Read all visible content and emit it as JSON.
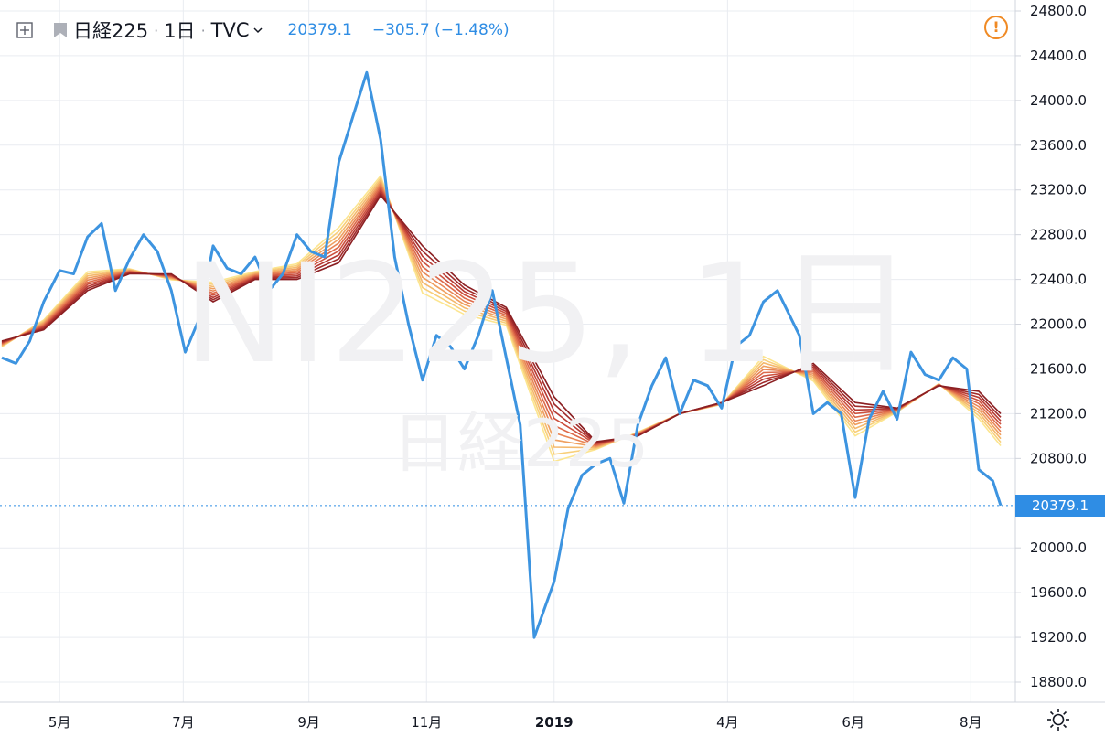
{
  "header": {
    "symbol": "日経225",
    "separator": "·",
    "timeframe": "1日",
    "exchange": "TVC",
    "last_price": "20379.1",
    "change": "−305.7 (−1.48%)",
    "price_color": "#2f8de4"
  },
  "watermark": {
    "main": "NI225, 1日",
    "sub": "日経225"
  },
  "alert_icon": "!",
  "current_price_label": "20379.1",
  "chart_data": {
    "type": "line",
    "title": "",
    "xlabel": "",
    "ylabel": "",
    "x_tick_labels": [
      "5月",
      "7月",
      "9月",
      "11月",
      "2019",
      "4月",
      "6月",
      "8月"
    ],
    "y_tick_labels": [
      "24800.0",
      "24400.0",
      "24000.0",
      "23600.0",
      "23200.0",
      "22800.0",
      "22400.0",
      "22000.0",
      "21600.0",
      "21200.0",
      "20800.0",
      "20000.0",
      "19600.0",
      "19200.0",
      "18800.0"
    ],
    "ylim": [
      18700,
      24900
    ],
    "x_range": [
      "2018-04-02",
      "2019-08-16"
    ],
    "grid": true,
    "current_price": 20379.1,
    "series": [
      {
        "color": "#3d94e0",
        "points": [
          [
            "2018-04-02",
            21700
          ],
          [
            "2018-04-09",
            21650
          ],
          [
            "2018-04-16",
            21850
          ],
          [
            "2018-04-23",
            22200
          ],
          [
            "2018-05-01",
            22480
          ],
          [
            "2018-05-08",
            22450
          ],
          [
            "2018-05-15",
            22780
          ],
          [
            "2018-05-22",
            22900
          ],
          [
            "2018-05-29",
            22300
          ],
          [
            "2018-06-05",
            22580
          ],
          [
            "2018-06-12",
            22800
          ],
          [
            "2018-06-19",
            22650
          ],
          [
            "2018-06-26",
            22300
          ],
          [
            "2018-07-03",
            21750
          ],
          [
            "2018-07-10",
            22050
          ],
          [
            "2018-07-17",
            22700
          ],
          [
            "2018-07-24",
            22500
          ],
          [
            "2018-07-31",
            22450
          ],
          [
            "2018-08-07",
            22600
          ],
          [
            "2018-08-14",
            22300
          ],
          [
            "2018-08-21",
            22450
          ],
          [
            "2018-08-28",
            22800
          ],
          [
            "2018-09-04",
            22650
          ],
          [
            "2018-09-11",
            22600
          ],
          [
            "2018-09-18",
            23450
          ],
          [
            "2018-09-25",
            23850
          ],
          [
            "2018-10-02",
            24250
          ],
          [
            "2018-10-09",
            23650
          ],
          [
            "2018-10-16",
            22600
          ],
          [
            "2018-10-23",
            22000
          ],
          [
            "2018-10-30",
            21500
          ],
          [
            "2018-11-06",
            21900
          ],
          [
            "2018-11-13",
            21800
          ],
          [
            "2018-11-20",
            21600
          ],
          [
            "2018-11-27",
            21900
          ],
          [
            "2018-12-04",
            22300
          ],
          [
            "2018-12-11",
            21700
          ],
          [
            "2018-12-18",
            21100
          ],
          [
            "2018-12-25",
            19200
          ],
          [
            "2019-01-04",
            19700
          ],
          [
            "2019-01-11",
            20350
          ],
          [
            "2019-01-18",
            20650
          ],
          [
            "2019-01-25",
            20750
          ],
          [
            "2019-02-01",
            20800
          ],
          [
            "2019-02-08",
            20400
          ],
          [
            "2019-02-15",
            21100
          ],
          [
            "2019-02-22",
            21450
          ],
          [
            "2019-03-01",
            21700
          ],
          [
            "2019-03-08",
            21200
          ],
          [
            "2019-03-15",
            21500
          ],
          [
            "2019-03-22",
            21450
          ],
          [
            "2019-03-29",
            21250
          ],
          [
            "2019-04-05",
            21800
          ],
          [
            "2019-04-12",
            21900
          ],
          [
            "2019-04-19",
            22200
          ],
          [
            "2019-04-26",
            22300
          ],
          [
            "2019-05-07",
            21900
          ],
          [
            "2019-05-14",
            21200
          ],
          [
            "2019-05-21",
            21300
          ],
          [
            "2019-05-28",
            21200
          ],
          [
            "2019-06-04",
            20450
          ],
          [
            "2019-06-11",
            21150
          ],
          [
            "2019-06-18",
            21400
          ],
          [
            "2019-06-25",
            21150
          ],
          [
            "2019-07-02",
            21750
          ],
          [
            "2019-07-09",
            21550
          ],
          [
            "2019-07-16",
            21500
          ],
          [
            "2019-07-23",
            21700
          ],
          [
            "2019-07-30",
            21600
          ],
          [
            "2019-08-05",
            20700
          ],
          [
            "2019-08-12",
            20600
          ],
          [
            "2019-08-16",
            20379.1
          ]
        ]
      }
    ],
    "ma_ribbon": {
      "colors": [
        "#fce58f",
        "#f8cf7a",
        "#f4b86c",
        "#ef9f60",
        "#e88555",
        "#dd6a4a",
        "#cc503e",
        "#b73a33",
        "#a02a2a",
        "#8b1f22"
      ],
      "points": [
        [
          "2018-04-02",
          21850
        ],
        [
          "2018-04-23",
          21950
        ],
        [
          "2018-05-15",
          22300
        ],
        [
          "2018-06-05",
          22450
        ],
        [
          "2018-06-26",
          22450
        ],
        [
          "2018-07-17",
          22200
        ],
        [
          "2018-08-07",
          22400
        ],
        [
          "2018-08-28",
          22400
        ],
        [
          "2018-09-18",
          22550
        ],
        [
          "2018-10-09",
          23150
        ],
        [
          "2018-10-30",
          22700
        ],
        [
          "2018-11-20",
          22350
        ],
        [
          "2018-12-11",
          22150
        ],
        [
          "2019-01-04",
          21350
        ],
        [
          "2019-01-25",
          20950
        ],
        [
          "2019-02-15",
          21000
        ],
        [
          "2019-03-08",
          21200
        ],
        [
          "2019-03-29",
          21300
        ],
        [
          "2019-04-19",
          21450
        ],
        [
          "2019-05-14",
          21650
        ],
        [
          "2019-06-04",
          21300
        ],
        [
          "2019-06-25",
          21250
        ],
        [
          "2019-07-16",
          21450
        ],
        [
          "2019-08-05",
          21400
        ],
        [
          "2019-08-16",
          21200
        ]
      ]
    }
  }
}
